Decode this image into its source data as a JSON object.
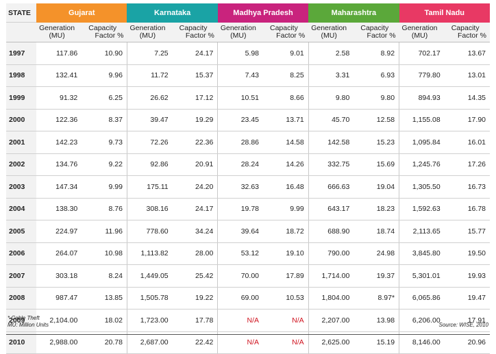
{
  "header": {
    "state_label": "STATE",
    "states": [
      "Gujarat",
      "Karnataka",
      "Madhya Pradesh",
      "Maharashtra",
      "Tamil Nadu"
    ],
    "generation_label_1": "Generation",
    "generation_label_2": "(MU)",
    "capacity_label_1": "Capacity",
    "capacity_label_2": "Factor %"
  },
  "colors": {
    "Gujarat": "#f4922a",
    "Karnataka": "#1aa3a5",
    "Madhya Pradesh": "#c9237d",
    "Maharashtra": "#5ba83a",
    "Tamil Nadu": "#e83964",
    "na_text": "#d0131f"
  },
  "rows": [
    {
      "year": "1997",
      "cells": [
        "117.86",
        "10.90",
        "7.25",
        "24.17",
        "5.98",
        "9.01",
        "2.58",
        "8.92",
        "702.17",
        "13.67"
      ]
    },
    {
      "year": "1998",
      "cells": [
        "132.41",
        "9.96",
        "11.72",
        "15.37",
        "7.43",
        "8.25",
        "3.31",
        "6.93",
        "779.80",
        "13.01"
      ]
    },
    {
      "year": "1999",
      "cells": [
        "91.32",
        "6.25",
        "26.62",
        "17.12",
        "10.51",
        "8.66",
        "9.80",
        "9.80",
        "894.93",
        "14.35"
      ]
    },
    {
      "year": "2000",
      "cells": [
        "122.36",
        "8.37",
        "39.47",
        "19.29",
        "23.45",
        "13.71",
        "45.70",
        "12.58",
        "1,155.08",
        "17.90"
      ]
    },
    {
      "year": "2001",
      "cells": [
        "142.23",
        "9.73",
        "72.26",
        "22.36",
        "28.86",
        "14.58",
        "142.58",
        "15.23",
        "1,095.84",
        "16.01"
      ]
    },
    {
      "year": "2002",
      "cells": [
        "134.76",
        "9.22",
        "92.86",
        "20.91",
        "28.24",
        "14.26",
        "332.75",
        "15.69",
        "1,245.76",
        "17.26"
      ]
    },
    {
      "year": "2003",
      "cells": [
        "147.34",
        "9.99",
        "175.11",
        "24.20",
        "32.63",
        "16.48",
        "666.63",
        "19.04",
        "1,305.50",
        "16.73"
      ]
    },
    {
      "year": "2004",
      "cells": [
        "138.30",
        "8.76",
        "308.16",
        "24.17",
        "19.78",
        "9.99",
        "643.17",
        "18.23",
        "1,592.63",
        "16.78"
      ]
    },
    {
      "year": "2005",
      "cells": [
        "224.97",
        "11.96",
        "778.60",
        "34.24",
        "39.64",
        "18.72",
        "688.90",
        "18.74",
        "2,113.65",
        "15.77"
      ]
    },
    {
      "year": "2006",
      "cells": [
        "264.07",
        "10.98",
        "1,113.82",
        "28.00",
        "53.12",
        "19.10",
        "790.00",
        "24.98",
        "3,845.80",
        "19.50"
      ]
    },
    {
      "year": "2007",
      "cells": [
        "303.18",
        "8.24",
        "1,449.05",
        "25.42",
        "70.00",
        "17.89",
        "1,714.00",
        "19.37",
        "5,301.01",
        "19.93"
      ]
    },
    {
      "year": "2008",
      "cells": [
        "987.47",
        "13.85",
        "1,505.78",
        "19.22",
        "69.00",
        "10.53",
        "1,804.00",
        "8.97*",
        "6,065.86",
        "19.47"
      ]
    },
    {
      "year": "2009",
      "cells": [
        "2,104.00",
        "18.02",
        "1,723.00",
        "17.78",
        "N/A",
        "N/A",
        "2,207.00",
        "13.98",
        "6,206.00",
        "17.91"
      ]
    },
    {
      "year": "2010",
      "cells": [
        "2,988.00",
        "20.78",
        "2,687.00",
        "22.42",
        "N/A",
        "N/A",
        "2,625.00",
        "15.19",
        "8,146.00",
        "20.96"
      ]
    }
  ],
  "footnotes": {
    "line1": "* Cable Theft",
    "line2": "MU: Million Units",
    "source": "Source: WISE, 2010"
  }
}
